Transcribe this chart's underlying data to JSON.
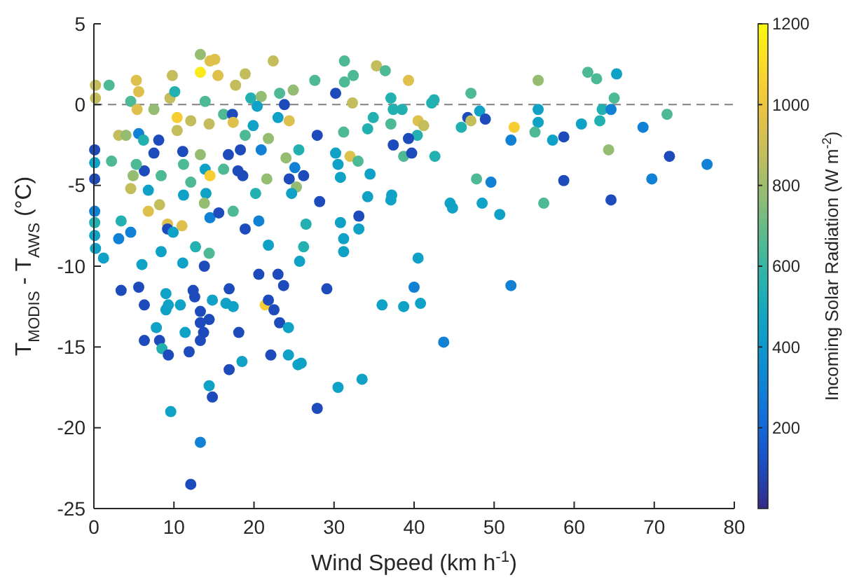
{
  "chart_data": {
    "type": "scatter",
    "xlabel": "Wind Speed (km h$^{-1}$)",
    "ylabel": "T$_{MODIS}$ - T$_{AWS}$ (°C)",
    "clabel": "Incoming Solar Radiation (W m$^{-2}$)",
    "xlim": [
      0,
      80
    ],
    "xticks": [
      0,
      10,
      20,
      30,
      40,
      50,
      60,
      70,
      80
    ],
    "ylim": [
      -25,
      5
    ],
    "yticks": [
      -25,
      -20,
      -15,
      -10,
      -5,
      0,
      5
    ],
    "clim": [
      0,
      1200
    ],
    "cticks": [
      200,
      400,
      600,
      800,
      1000,
      1200
    ],
    "marker": "circle",
    "grid": false,
    "ref_lines": [
      {
        "axis": "y",
        "value": 0,
        "color": "#808080",
        "line_style": "dashed"
      }
    ],
    "x": [
      0.2,
      0.2,
      1.9,
      0.1,
      0.1,
      0.1,
      0.1,
      0.1,
      0.1,
      0.2,
      1.2,
      2.2,
      3.1,
      4.0,
      3.4,
      3.1,
      4.6,
      4.6,
      5.3,
      5.6,
      5.4,
      5.6,
      6.2,
      6.3,
      5.3,
      4.9,
      4.6,
      6.8,
      6.0,
      5.6,
      7.5,
      8.1,
      7.5,
      8.4,
      8.2,
      6.8,
      9.2,
      9.2,
      9.9,
      11.0,
      8.4,
      9.0,
      9.5,
      9.8,
      10.1,
      10.4,
      10.4,
      11.1,
      12.1,
      13.3,
      13.3,
      14.5,
      15.1,
      15.5,
      13.9,
      14.4,
      16.2,
      17.3,
      17.4,
      17.7,
      18.9,
      19.6,
      20.9,
      20.4,
      19.9,
      18.9,
      18.3,
      16.8,
      16.2,
      18.0,
      18.6,
      13.9,
      14.5,
      13.3,
      12.1,
      11.2,
      11.2,
      14.0,
      13.8,
      14.5,
      15.6,
      17.4,
      18.9,
      20.6,
      20.2,
      21.6,
      20.9,
      21.8,
      23.0,
      23.8,
      24.4,
      24.9,
      22.4,
      23.2,
      27.6,
      27.9,
      25.6,
      24.0,
      25.1,
      26.2,
      24.4,
      25.3,
      24.7,
      28.2,
      26.5,
      26.2,
      25.7,
      21.8,
      20.6,
      23.0,
      23.7,
      16.9,
      12.7,
      13.8,
      14.4,
      11.1,
      12.4,
      3.4,
      31.3,
      32.4,
      31.3,
      30.2,
      32.3,
      31.2,
      30.2,
      32.0,
      33.0,
      30.5,
      30.8,
      34.5,
      34.2,
      37.2,
      37.1,
      33.1,
      33.1,
      30.8,
      31.2,
      31.2,
      29.1,
      35.3,
      36.4,
      39.3,
      37.1,
      37.4,
      38.5,
      37.1,
      34.9,
      34.2,
      40.5,
      41.2,
      40.4,
      39.3,
      37.4,
      38.7,
      39.7,
      42.5,
      42.2,
      42.6,
      47.1,
      46.7,
      47.1,
      45.9,
      48.2,
      48.9,
      47.8,
      49.6,
      44.5,
      44.8,
      48.5,
      50.7,
      40.5,
      40.0,
      52.1,
      52.5,
      52.1,
      55.5,
      55.5,
      55.5,
      55.1,
      57.3,
      58.7,
      56.2,
      58.7,
      60.9,
      61.7,
      62.8,
      65.3,
      65.0,
      63.5,
      64.6,
      63.2,
      64.3,
      64.6,
      68.6,
      71.6,
      71.9,
      69.7,
      76.6,
      6.3,
      9.0,
      9.3,
      7.8,
      6.3,
      8.2,
      8.5,
      9.3,
      10.8,
      11.4,
      11.9,
      12.6,
      13.3,
      13.3,
      14.4,
      13.3,
      13.7,
      14.8,
      16.5,
      17.4,
      16.9,
      14.4,
      14.8,
      18.5,
      18.1,
      21.4,
      21.8,
      22.5,
      23.2,
      24.3,
      22.1,
      24.3,
      25.5,
      25.9,
      27.9,
      30.5,
      33.5,
      9.6,
      13.3,
      12.1,
      36.0,
      38.7,
      40.8,
      43.7
    ],
    "values": [
      1.2,
      0.4,
      1.2,
      -2.8,
      -3.6,
      -4.6,
      -6.6,
      -7.3,
      -8.1,
      -8.9,
      -9.5,
      -3.5,
      -1.9,
      -1.9,
      -7.2,
      -8.3,
      -7.9,
      0.2,
      1.5,
      0.8,
      -0.3,
      -1.8,
      -2.2,
      -4.1,
      -3.7,
      -4.4,
      -5.2,
      -5.3,
      -9.9,
      -11.3,
      -0.3,
      -2.2,
      -3.0,
      -4.4,
      -6.2,
      -6.6,
      -7.4,
      -7.7,
      -7.9,
      -7.5,
      -9.1,
      -11.7,
      0.4,
      1.8,
      0.8,
      -0.8,
      -1.6,
      -2.9,
      -1.0,
      2.0,
      3.1,
      2.7,
      2.8,
      1.8,
      0.2,
      -1.2,
      -0.6,
      -0.6,
      -1.1,
      1.2,
      1.9,
      0.4,
      0.5,
      -0.1,
      -1.3,
      -1.9,
      -2.8,
      -3.1,
      -4.0,
      -4.1,
      -4.4,
      -4.0,
      -4.4,
      -3.1,
      -4.8,
      -5.6,
      -3.7,
      -5.5,
      -6.1,
      -7.0,
      -6.7,
      -6.6,
      -7.7,
      -7.2,
      -5.5,
      -4.6,
      -2.8,
      -2.1,
      -0.8,
      0.0,
      -1.0,
      0.9,
      2.7,
      0.7,
      1.5,
      -1.9,
      -2.8,
      -3.3,
      -3.9,
      -4.4,
      -4.6,
      -5.1,
      -5.5,
      -6.0,
      -7.4,
      -8.8,
      -9.7,
      -8.7,
      -10.5,
      -10.5,
      -11.2,
      -11.4,
      -8.8,
      -10.0,
      -9.2,
      -9.8,
      -11.5,
      -11.5,
      2.7,
      1.8,
      1.4,
      0.7,
      0.1,
      -1.7,
      -3.0,
      -3.2,
      -3.5,
      -3.7,
      -4.5,
      -4.3,
      -5.7,
      -5.6,
      -5.9,
      -6.9,
      -7.7,
      -7.3,
      -8.3,
      -9.1,
      -11.4,
      2.4,
      2.1,
      1.5,
      0.4,
      -0.3,
      -0.3,
      -1.2,
      -0.8,
      -1.5,
      -1.0,
      -1.3,
      -1.9,
      -2.1,
      -2.5,
      -3.2,
      -3.0,
      0.3,
      0.1,
      -3.2,
      0.7,
      -0.8,
      -1.0,
      -1.4,
      -0.4,
      -0.9,
      -4.6,
      -4.8,
      -6.1,
      -6.4,
      -6.1,
      -6.8,
      -9.5,
      -11.3,
      -11.2,
      -1.4,
      -2.2,
      1.5,
      -0.3,
      -1.1,
      -1.7,
      -2.2,
      -2.0,
      -6.1,
      -4.7,
      -1.2,
      2.0,
      1.6,
      1.9,
      0.4,
      -0.3,
      -0.3,
      -1.0,
      -2.8,
      -5.9,
      -1.4,
      -0.6,
      -3.2,
      -4.6,
      -3.7,
      -12.4,
      -12.7,
      -12.4,
      -13.8,
      -14.6,
      -14.6,
      -15.1,
      -15.5,
      -12.4,
      -14.1,
      -15.3,
      -11.9,
      -12.8,
      -13.5,
      -13.3,
      -14.6,
      -14.1,
      -12.1,
      -12.3,
      -12.5,
      -16.4,
      -17.4,
      -18.1,
      -15.9,
      -14.1,
      -12.4,
      -12.1,
      -12.7,
      -13.5,
      -13.8,
      -15.5,
      -15.5,
      -16.1,
      -16.0,
      -18.8,
      -17.5,
      -17.0,
      -19.0,
      -20.9,
      -23.5,
      -12.4,
      -12.5,
      -12.3,
      -14.7
    ],
    "cvalues": [
      880,
      880,
      650,
      100,
      450,
      100,
      300,
      550,
      450,
      450,
      450,
      650,
      880,
      780,
      550,
      300,
      300,
      650,
      950,
      950,
      950,
      300,
      550,
      100,
      650,
      780,
      880,
      450,
      450,
      100,
      780,
      100,
      100,
      650,
      880,
      950,
      950,
      100,
      450,
      950,
      450,
      450,
      880,
      880,
      550,
      1050,
      880,
      100,
      880,
      1150,
      780,
      950,
      950,
      950,
      650,
      880,
      650,
      100,
      950,
      880,
      880,
      550,
      780,
      450,
      450,
      650,
      100,
      100,
      650,
      100,
      100,
      450,
      1050,
      780,
      650,
      450,
      650,
      450,
      780,
      300,
      100,
      650,
      100,
      300,
      550,
      780,
      300,
      780,
      450,
      100,
      950,
      780,
      880,
      650,
      650,
      100,
      550,
      780,
      300,
      100,
      100,
      780,
      450,
      100,
      550,
      550,
      450,
      450,
      100,
      100,
      100,
      100,
      550,
      100,
      650,
      450,
      100,
      100,
      650,
      650,
      650,
      100,
      880,
      650,
      450,
      950,
      650,
      450,
      450,
      450,
      450,
      450,
      450,
      100,
      450,
      450,
      450,
      450,
      100,
      880,
      650,
      950,
      550,
      550,
      550,
      650,
      550,
      550,
      950,
      880,
      550,
      100,
      100,
      650,
      100,
      550,
      550,
      550,
      650,
      100,
      880,
      550,
      450,
      100,
      650,
      300,
      450,
      450,
      450,
      450,
      450,
      300,
      300,
      1050,
      300,
      780,
      450,
      450,
      650,
      450,
      100,
      650,
      100,
      450,
      650,
      650,
      450,
      650,
      550,
      300,
      550,
      780,
      100,
      300,
      650,
      100,
      300,
      300,
      100,
      450,
      450,
      450,
      100,
      100,
      550,
      100,
      450,
      450,
      100,
      100,
      100,
      100,
      100,
      100,
      100,
      450,
      450,
      450,
      100,
      450,
      100,
      450,
      100,
      1050,
      100,
      100,
      100,
      450,
      100,
      450,
      450,
      450,
      100,
      450,
      450,
      450,
      300,
      100,
      450,
      450,
      450,
      300
    ]
  }
}
